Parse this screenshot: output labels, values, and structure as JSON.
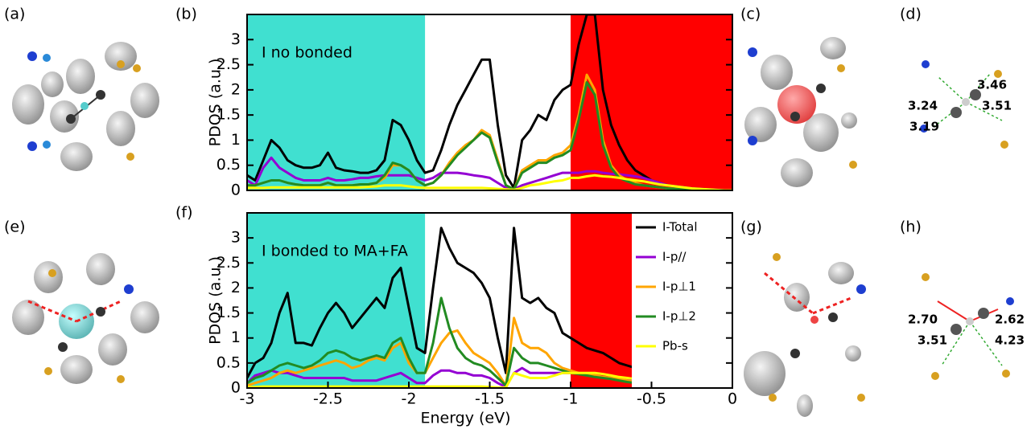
{
  "figure": {
    "panel_labels": [
      "(a)",
      "(c)",
      "(d)",
      "(e)",
      "(g)",
      "(h)"
    ],
    "distances_d": [
      "3.24",
      "3.46",
      "3.19",
      "3.51"
    ],
    "distances_h": [
      "2.70",
      "2.62",
      "3.51",
      "4.23"
    ]
  },
  "chart_data": [
    {
      "type": "line",
      "panel": "(b)",
      "annotation": "I no bonded",
      "ylabel": "PDOS (a.u.)",
      "xlim": [
        -3,
        0
      ],
      "ylim": [
        0,
        3.5
      ],
      "yticks": [
        0,
        0.5,
        1,
        1.5,
        2,
        2.5,
        3
      ],
      "legend": false,
      "regions": [
        {
          "from": -3,
          "to": -1.9,
          "color": "#40e0d0"
        },
        {
          "from": -1,
          "to": 0,
          "color": "#ff0000"
        }
      ],
      "x": [
        -3,
        -2.95,
        -2.9,
        -2.85,
        -2.8,
        -2.75,
        -2.7,
        -2.65,
        -2.6,
        -2.55,
        -2.5,
        -2.45,
        -2.4,
        -2.35,
        -2.3,
        -2.25,
        -2.2,
        -2.15,
        -2.1,
        -2.05,
        -2,
        -1.95,
        -1.9,
        -1.85,
        -1.8,
        -1.75,
        -1.7,
        -1.65,
        -1.6,
        -1.55,
        -1.5,
        -1.45,
        -1.4,
        -1.35,
        -1.3,
        -1.25,
        -1.2,
        -1.15,
        -1.1,
        -1.05,
        -1,
        -0.95,
        -0.9,
        -0.85,
        -0.8,
        -0.75,
        -0.7,
        -0.65,
        -0.6,
        -0.55,
        -0.5,
        -0.45,
        -0.4,
        -0.35,
        -0.3,
        -0.25,
        -0.2,
        -0.15,
        -0.1,
        -0.05,
        0
      ],
      "series": [
        {
          "name": "I-Total",
          "color": "#000000",
          "values": [
            0.3,
            0.2,
            0.6,
            1.0,
            0.85,
            0.6,
            0.5,
            0.45,
            0.45,
            0.5,
            0.75,
            0.45,
            0.4,
            0.38,
            0.35,
            0.35,
            0.4,
            0.6,
            1.4,
            1.3,
            1.0,
            0.6,
            0.35,
            0.4,
            0.8,
            1.3,
            1.7,
            2.0,
            2.3,
            2.6,
            2.6,
            1.3,
            0.3,
            0.05,
            1.0,
            1.2,
            1.5,
            1.4,
            1.8,
            2.0,
            2.1,
            2.9,
            3.5,
            3.5,
            2.0,
            1.3,
            0.9,
            0.6,
            0.4,
            0.3,
            0.2,
            0.15,
            0.1,
            0.08,
            0.06,
            0.04,
            0.03,
            0.02,
            0.01,
            0,
            0
          ]
        },
        {
          "name": "I-p//",
          "color": "#9400d3",
          "values": [
            0.2,
            0.1,
            0.45,
            0.65,
            0.45,
            0.35,
            0.25,
            0.2,
            0.2,
            0.2,
            0.25,
            0.2,
            0.2,
            0.22,
            0.25,
            0.25,
            0.28,
            0.3,
            0.3,
            0.3,
            0.3,
            0.25,
            0.2,
            0.25,
            0.35,
            0.35,
            0.35,
            0.33,
            0.3,
            0.28,
            0.25,
            0.15,
            0.05,
            0.02,
            0.1,
            0.15,
            0.2,
            0.25,
            0.3,
            0.35,
            0.35,
            0.35,
            0.38,
            0.38,
            0.35,
            0.33,
            0.32,
            0.3,
            0.28,
            0.25,
            0.2,
            0.15,
            0.1,
            0.08,
            0.06,
            0.04,
            0.03,
            0.02,
            0.01,
            0,
            0
          ]
        },
        {
          "name": "I-p⊥1",
          "color": "#ffa500",
          "values": [
            0.1,
            0.1,
            0.15,
            0.2,
            0.2,
            0.15,
            0.12,
            0.1,
            0.1,
            0.1,
            0.15,
            0.1,
            0.1,
            0.1,
            0.12,
            0.12,
            0.15,
            0.25,
            0.5,
            0.5,
            0.4,
            0.2,
            0.1,
            0.15,
            0.3,
            0.55,
            0.75,
            0.9,
            1.0,
            1.2,
            1.1,
            0.6,
            0.1,
            0.02,
            0.4,
            0.5,
            0.6,
            0.6,
            0.7,
            0.75,
            0.9,
            1.5,
            2.3,
            2.0,
            1.0,
            0.5,
            0.3,
            0.2,
            0.15,
            0.1,
            0.08,
            0.06,
            0.04,
            0.03,
            0.02,
            0.01,
            0.01,
            0,
            0,
            0,
            0
          ]
        },
        {
          "name": "I-p⊥2",
          "color": "#228b22",
          "values": [
            0.1,
            0.1,
            0.15,
            0.2,
            0.2,
            0.15,
            0.12,
            0.1,
            0.1,
            0.1,
            0.15,
            0.1,
            0.1,
            0.1,
            0.12,
            0.12,
            0.15,
            0.3,
            0.55,
            0.5,
            0.4,
            0.2,
            0.1,
            0.15,
            0.3,
            0.5,
            0.7,
            0.85,
            1.0,
            1.15,
            1.05,
            0.55,
            0.1,
            0.02,
            0.35,
            0.45,
            0.55,
            0.55,
            0.65,
            0.7,
            0.8,
            1.4,
            2.15,
            1.9,
            0.9,
            0.45,
            0.25,
            0.18,
            0.12,
            0.1,
            0.08,
            0.06,
            0.04,
            0.03,
            0.02,
            0.01,
            0.01,
            0,
            0,
            0,
            0
          ]
        },
        {
          "name": "Pb-s",
          "color": "#ffff00",
          "values": [
            0.05,
            0.05,
            0.05,
            0.06,
            0.06,
            0.06,
            0.06,
            0.06,
            0.06,
            0.06,
            0.06,
            0.06,
            0.06,
            0.06,
            0.06,
            0.07,
            0.08,
            0.1,
            0.1,
            0.1,
            0.08,
            0.06,
            0.05,
            0.05,
            0.05,
            0.05,
            0.05,
            0.05,
            0.05,
            0.05,
            0.04,
            0.03,
            0.02,
            0.01,
            0.05,
            0.1,
            0.12,
            0.15,
            0.18,
            0.2,
            0.25,
            0.25,
            0.28,
            0.3,
            0.28,
            0.27,
            0.25,
            0.22,
            0.2,
            0.18,
            0.15,
            0.12,
            0.1,
            0.08,
            0.06,
            0.04,
            0.03,
            0.02,
            0.01,
            0,
            0
          ]
        }
      ]
    },
    {
      "type": "line",
      "panel": "(f)",
      "annotation": "I bonded to MA+FA",
      "ylabel": "PDOS (a.u.)",
      "xlabel": "Energy (eV)",
      "xlim": [
        -3,
        0
      ],
      "xticks": [
        -3,
        -2.5,
        -2,
        -1.5,
        -1,
        -0.5,
        0
      ],
      "ylim": [
        0,
        3.5
      ],
      "yticks": [
        0,
        0.5,
        1,
        1.5,
        2,
        2.5,
        3
      ],
      "legend": "upper right",
      "regions": [
        {
          "from": -3,
          "to": -1.9,
          "color": "#40e0d0"
        },
        {
          "from": -1,
          "to": 0,
          "color": "#ff0000"
        }
      ],
      "x": [
        -3,
        -2.95,
        -2.9,
        -2.85,
        -2.8,
        -2.75,
        -2.7,
        -2.65,
        -2.6,
        -2.55,
        -2.5,
        -2.45,
        -2.4,
        -2.35,
        -2.3,
        -2.25,
        -2.2,
        -2.15,
        -2.1,
        -2.05,
        -2,
        -1.95,
        -1.9,
        -1.85,
        -1.8,
        -1.75,
        -1.7,
        -1.65,
        -1.6,
        -1.55,
        -1.5,
        -1.45,
        -1.4,
        -1.35,
        -1.3,
        -1.25,
        -1.2,
        -1.15,
        -1.1,
        -1.05,
        -1,
        -0.95,
        -0.9,
        -0.85,
        -0.8,
        -0.75,
        -0.7,
        -0.65,
        -0.6,
        -0.55,
        -0.5,
        -0.45,
        -0.4,
        -0.35,
        -0.3,
        -0.25,
        -0.2,
        -0.15,
        -0.1,
        -0.05,
        0
      ],
      "series": [
        {
          "name": "I-Total",
          "color": "#000000",
          "values": [
            0.2,
            0.5,
            0.6,
            0.9,
            1.5,
            1.9,
            0.9,
            0.9,
            0.85,
            1.2,
            1.5,
            1.7,
            1.5,
            1.2,
            1.4,
            1.6,
            1.8,
            1.6,
            2.2,
            2.4,
            1.6,
            0.8,
            0.7,
            2.0,
            3.2,
            2.8,
            2.5,
            2.4,
            2.3,
            2.1,
            1.8,
            1.0,
            0.3,
            3.2,
            1.8,
            1.7,
            1.8,
            1.6,
            1.5,
            1.1,
            1.0,
            0.9,
            0.8,
            0.75,
            0.7,
            0.6,
            0.5,
            0.45,
            0.4,
            0.35,
            0.3,
            0.25,
            0.2,
            0.17,
            0.14,
            0.1,
            0.08,
            0.06,
            0.04,
            0.02,
            0.01
          ]
        },
        {
          "name": "I-p//",
          "color": "#9400d3",
          "values": [
            0.1,
            0.25,
            0.3,
            0.35,
            0.3,
            0.3,
            0.25,
            0.2,
            0.2,
            0.2,
            0.2,
            0.2,
            0.2,
            0.15,
            0.15,
            0.15,
            0.15,
            0.2,
            0.25,
            0.3,
            0.2,
            0.1,
            0.1,
            0.25,
            0.35,
            0.35,
            0.3,
            0.3,
            0.25,
            0.25,
            0.2,
            0.1,
            0.02,
            0.3,
            0.4,
            0.3,
            0.3,
            0.3,
            0.3,
            0.3,
            0.3,
            0.3,
            0.25,
            0.25,
            0.22,
            0.2,
            0.18,
            0.16,
            0.14,
            0.12,
            0.1,
            0.08,
            0.06,
            0.05,
            0.04,
            0.03,
            0.02,
            0.01,
            0.01,
            0,
            0
          ]
        },
        {
          "name": "I-p⊥1",
          "color": "#ffa500",
          "values": [
            0.05,
            0.1,
            0.15,
            0.2,
            0.3,
            0.35,
            0.3,
            0.35,
            0.4,
            0.45,
            0.5,
            0.55,
            0.5,
            0.4,
            0.45,
            0.55,
            0.6,
            0.55,
            0.8,
            0.9,
            0.5,
            0.3,
            0.3,
            0.6,
            0.9,
            1.1,
            1.15,
            0.9,
            0.7,
            0.6,
            0.5,
            0.3,
            0.05,
            1.4,
            0.9,
            0.8,
            0.8,
            0.7,
            0.5,
            0.4,
            0.35,
            0.3,
            0.28,
            0.25,
            0.22,
            0.2,
            0.18,
            0.15,
            0.12,
            0.1,
            0.08,
            0.06,
            0.05,
            0.04,
            0.03,
            0.02,
            0.01,
            0.01,
            0,
            0,
            0
          ]
        },
        {
          "name": "I-p⊥2",
          "color": "#228b22",
          "values": [
            0.1,
            0.2,
            0.25,
            0.35,
            0.45,
            0.5,
            0.45,
            0.4,
            0.45,
            0.55,
            0.7,
            0.75,
            0.7,
            0.6,
            0.55,
            0.6,
            0.65,
            0.6,
            0.9,
            1.0,
            0.6,
            0.3,
            0.3,
            0.9,
            1.8,
            1.2,
            0.8,
            0.6,
            0.5,
            0.45,
            0.35,
            0.2,
            0.05,
            0.8,
            0.6,
            0.5,
            0.5,
            0.45,
            0.4,
            0.35,
            0.3,
            0.28,
            0.25,
            0.22,
            0.2,
            0.18,
            0.15,
            0.12,
            0.1,
            0.08,
            0.06,
            0.05,
            0.04,
            0.03,
            0.02,
            0.01,
            0.01,
            0,
            0,
            0,
            0
          ]
        },
        {
          "name": "Pb-s",
          "color": "#ffff00",
          "values": [
            0.02,
            0.02,
            0.03,
            0.03,
            0.03,
            0.03,
            0.03,
            0.03,
            0.03,
            0.03,
            0.03,
            0.03,
            0.03,
            0.03,
            0.03,
            0.03,
            0.03,
            0.03,
            0.03,
            0.03,
            0.03,
            0.03,
            0.03,
            0.03,
            0.03,
            0.03,
            0.03,
            0.03,
            0.03,
            0.03,
            0.02,
            0.01,
            0.01,
            0.3,
            0.25,
            0.2,
            0.2,
            0.2,
            0.25,
            0.3,
            0.3,
            0.3,
            0.3,
            0.3,
            0.28,
            0.25,
            0.22,
            0.2,
            0.18,
            0.15,
            0.12,
            0.1,
            0.08,
            0.06,
            0.05,
            0.04,
            0.03,
            0.02,
            0.01,
            0.01,
            0
          ]
        }
      ]
    }
  ]
}
